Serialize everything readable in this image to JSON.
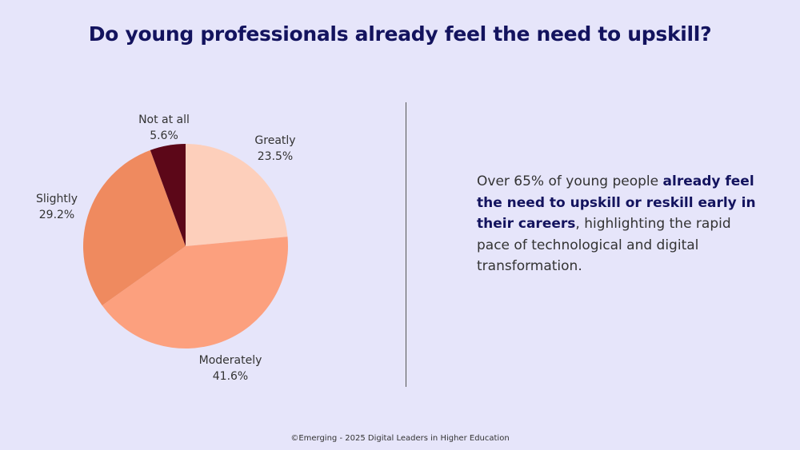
{
  "title": "Do young professionals already feel the need to upskill?",
  "chart_data": {
    "type": "pie",
    "categories": [
      "Greatly",
      "Moderately",
      "Slightly",
      "Not at all"
    ],
    "values": [
      23.5,
      41.6,
      29.2,
      5.6
    ],
    "labels": [
      "23.5%",
      "41.6%",
      "29.2%",
      "5.6%"
    ],
    "colors": [
      "#fdcfbb",
      "#fca07e",
      "#ef8a5f",
      "#5c0718"
    ],
    "start": "12 o'clock",
    "direction": "clockwise"
  },
  "summary": {
    "text_before": "Over 65% of young people ",
    "text_bold": "already feel the need to upskill or reskill early in their careers",
    "text_after": ", highlighting the rapid pace of technological and digital transformation."
  },
  "footer": "©Emerging - 2025 Digital Leaders in Higher Education"
}
